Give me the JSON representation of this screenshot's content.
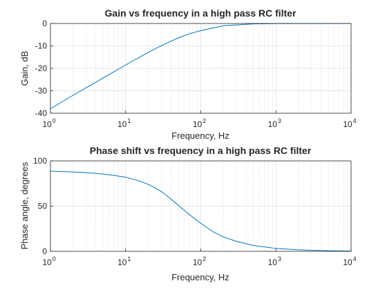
{
  "chart_data": [
    {
      "type": "line",
      "title": "Gain vs frequency in a high pass RC filter",
      "xlabel": "Frequency, Hz",
      "ylabel": "Gain, dB",
      "xscale": "log",
      "xlim": [
        1,
        10000
      ],
      "ylim": [
        -40,
        0
      ],
      "xticks": [
        1,
        10,
        100,
        1000,
        10000
      ],
      "xtick_labels": [
        {
          "base": "10",
          "exp": "0"
        },
        {
          "base": "10",
          "exp": "1"
        },
        {
          "base": "10",
          "exp": "2"
        },
        {
          "base": "10",
          "exp": "3"
        },
        {
          "base": "10",
          "exp": "4"
        }
      ],
      "yticks": [
        -40,
        -30,
        -20,
        -10,
        0
      ],
      "ytick_labels": [
        "-40",
        "-30",
        "-20",
        "-10",
        "0"
      ],
      "grid": true,
      "line_color": "#0072bd",
      "series": [
        {
          "x": [
            1,
            1.5,
            2,
            3,
            4,
            5,
            6,
            7,
            8,
            10,
            12,
            15,
            20,
            25,
            30,
            40,
            50,
            70,
            100,
            200,
            500,
            1000,
            10000
          ],
          "y": [
            -38,
            -34.5,
            -32,
            -28.6,
            -26.2,
            -24.3,
            -22.8,
            -21.5,
            -20.4,
            -18.5,
            -17,
            -15.2,
            -12.9,
            -11.2,
            -9.9,
            -7.9,
            -6.5,
            -4.6,
            -3.2,
            -1.0,
            -0.2,
            -0.05,
            0
          ]
        }
      ]
    },
    {
      "type": "line",
      "title": "Phase shift vs frequency in a high pass RC filter",
      "xlabel": "Frequency, Hz",
      "ylabel": "Phase angle, degrees",
      "xscale": "log",
      "xlim": [
        1,
        10000
      ],
      "ylim": [
        0,
        100
      ],
      "xticks": [
        1,
        10,
        100,
        1000,
        10000
      ],
      "xtick_labels": [
        {
          "base": "10",
          "exp": "0"
        },
        {
          "base": "10",
          "exp": "1"
        },
        {
          "base": "10",
          "exp": "2"
        },
        {
          "base": "10",
          "exp": "3"
        },
        {
          "base": "10",
          "exp": "4"
        }
      ],
      "yticks": [
        0,
        50,
        100
      ],
      "ytick_labels": [
        "0",
        "50",
        "100"
      ],
      "grid": true,
      "line_color": "#0072bd",
      "series": [
        {
          "x": [
            1,
            2,
            3,
            5,
            7,
            10,
            15,
            20,
            25,
            30,
            40,
            50,
            60,
            80,
            100,
            150,
            200,
            300,
            500,
            1000,
            2000,
            5000,
            10000
          ],
          "y": [
            88.5,
            87.7,
            87,
            85.5,
            84,
            82,
            78,
            74,
            70,
            66,
            58,
            51,
            45.5,
            37,
            31,
            21,
            16,
            11,
            6.5,
            3.2,
            1.6,
            0.65,
            0.3
          ]
        }
      ]
    }
  ]
}
